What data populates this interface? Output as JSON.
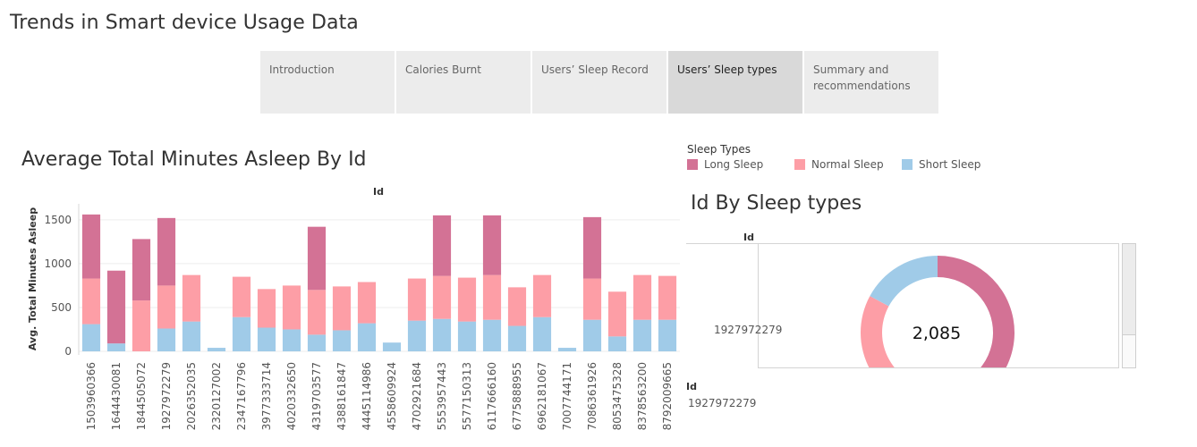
{
  "page": {
    "title": "Trends in Smart device Usage Data"
  },
  "tabs": [
    {
      "label": "Introduction",
      "active": false
    },
    {
      "label": "Calories Burnt",
      "active": false
    },
    {
      "label": "Users’ Sleep Record",
      "active": false
    },
    {
      "label": "Users’ Sleep types",
      "active": true
    },
    {
      "label": "Summary and recommendations",
      "active": false
    }
  ],
  "legend": {
    "title": "Sleep Types",
    "items": [
      {
        "label": "Long Sleep",
        "color": "#d37295"
      },
      {
        "label": "Normal Sleep",
        "color": "#fd9ea6"
      },
      {
        "label": "Short Sleep",
        "color": "#a0cbe8"
      }
    ]
  },
  "donut_panel": {
    "title": "Id By Sleep types",
    "column_label": "Id",
    "row_label": "1927972279",
    "center_value": "2,085",
    "detail_label": "Id",
    "detail_value": "1927972279"
  },
  "chart_data": [
    {
      "type": "bar",
      "stacked": true,
      "title": "Average Total Minutes Asleep By Id",
      "xlabel": "Id",
      "ylabel": "Avg. Total Minutes Asleep",
      "ylim": [
        0,
        1600
      ],
      "yticks": [
        0,
        500,
        1000,
        1500
      ],
      "grid": true,
      "categories": [
        "1503960366",
        "1644430081",
        "1844505072",
        "1927972279",
        "2026352035",
        "2320127002",
        "2347167796",
        "3977333714",
        "4020332650",
        "4319703577",
        "4388161847",
        "4445114986",
        "4558609924",
        "4702921684",
        "5553957443",
        "5577150313",
        "6117666160",
        "6775888955",
        "6962181067",
        "7007744171",
        "7086361926",
        "8053475328",
        "8378563200",
        "8792009665"
      ],
      "series": [
        {
          "name": "Short Sleep",
          "color": "#a0cbe8",
          "values": [
            310,
            90,
            0,
            260,
            340,
            40,
            390,
            270,
            250,
            190,
            240,
            320,
            100,
            350,
            370,
            340,
            360,
            290,
            390,
            40,
            360,
            170,
            360,
            360
          ]
        },
        {
          "name": "Normal Sleep",
          "color": "#fd9ea6",
          "values": [
            520,
            0,
            580,
            490,
            530,
            0,
            460,
            440,
            500,
            510,
            500,
            470,
            0,
            480,
            490,
            500,
            510,
            440,
            480,
            0,
            470,
            510,
            510,
            500
          ]
        },
        {
          "name": "Long Sleep",
          "color": "#d37295",
          "values": [
            730,
            830,
            700,
            770,
            0,
            0,
            0,
            0,
            0,
            720,
            0,
            0,
            0,
            0,
            690,
            0,
            680,
            0,
            0,
            0,
            700,
            0,
            0,
            0
          ]
        }
      ]
    },
    {
      "type": "pie",
      "donut": true,
      "title": "Id By Sleep types",
      "center_label": "2,085",
      "slices": [
        {
          "name": "Long Sleep",
          "color": "#d37295",
          "value": 770
        },
        {
          "name": "Normal Sleep",
          "color": "#fd9ea6",
          "value": 490
        },
        {
          "name": "Short Sleep",
          "color": "#a0cbe8",
          "value": 260
        }
      ]
    }
  ]
}
